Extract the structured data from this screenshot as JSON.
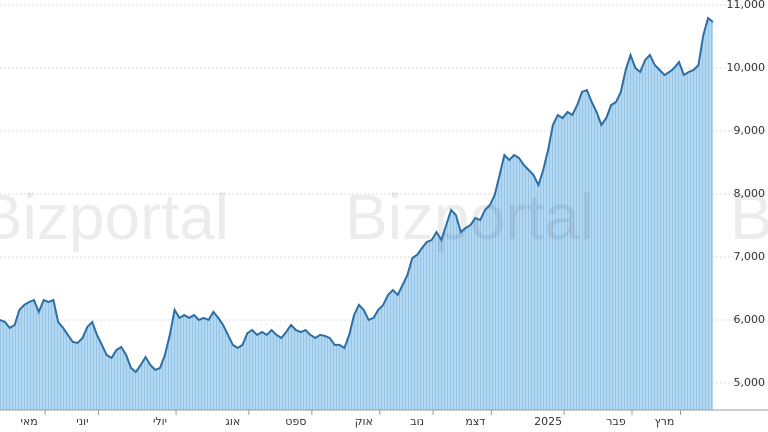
{
  "chart_data": {
    "type": "area",
    "watermark": "Bizportal",
    "series": [
      {
        "color": "#2e6fa3",
        "fill": "#a9d1ee",
        "values": [
          6000,
          5968,
          5873,
          5920,
          6159,
          6238,
          6285,
          6317,
          6127,
          6317,
          6285,
          6317,
          5968,
          5873,
          5762,
          5650,
          5635,
          5714,
          5889,
          5968,
          5762,
          5603,
          5444,
          5397,
          5523,
          5571,
          5444,
          5238,
          5174,
          5285,
          5412,
          5285,
          5206,
          5238,
          5444,
          5762,
          6159,
          6032,
          6079,
          6032,
          6079,
          6000,
          6032,
          6000,
          6127,
          6032,
          5920,
          5762,
          5603,
          5555,
          5603,
          5793,
          5841,
          5762,
          5809,
          5762,
          5841,
          5762,
          5714,
          5809,
          5920,
          5841,
          5809,
          5841,
          5762,
          5714,
          5762,
          5746,
          5714,
          5603,
          5603,
          5555,
          5762,
          6079,
          6238,
          6159,
          6000,
          6032,
          6159,
          6238,
          6397,
          6476,
          6397,
          6555,
          6714,
          6984,
          7032,
          7143,
          7238,
          7270,
          7397,
          7270,
          7508,
          7746,
          7667,
          7397,
          7460,
          7508,
          7619,
          7587,
          7746,
          7825,
          7984,
          8301,
          8619,
          8539,
          8619,
          8571,
          8460,
          8381,
          8301,
          8142,
          8381,
          8698,
          9095,
          9254,
          9206,
          9301,
          9254,
          9412,
          9619,
          9650,
          9460,
          9301,
          9095,
          9206,
          9412,
          9460,
          9619,
          9968,
          10206,
          10000,
          9936,
          10127,
          10206,
          10047,
          9968,
          9889,
          9936,
          10000,
          10095,
          9889,
          9936,
          9968,
          10047,
          10523,
          10793,
          10730
        ]
      }
    ],
    "xlim": [
      0,
      147
    ],
    "xticks": [
      {
        "value": 6,
        "label": "מאי"
      },
      {
        "value": 17,
        "label": "יוני"
      },
      {
        "value": 33,
        "label": "יולי"
      },
      {
        "value": 48,
        "label": "אוג"
      },
      {
        "value": 61,
        "label": "ספט"
      },
      {
        "value": 75,
        "label": "אוק"
      },
      {
        "value": 86,
        "label": "נוב"
      },
      {
        "value": 98,
        "label": "דצמ"
      },
      {
        "value": 113,
        "label": "2025"
      },
      {
        "value": 127,
        "label": "פבר"
      },
      {
        "value": 137,
        "label": "מרץ"
      }
    ],
    "ylim": [
      4570,
      11080
    ],
    "yticks": [
      {
        "value": 5000,
        "label": "5,000"
      },
      {
        "value": 6000,
        "label": "6,000"
      },
      {
        "value": 7000,
        "label": "7,000"
      },
      {
        "value": 8000,
        "label": "8,000"
      },
      {
        "value": 9000,
        "label": "9,000"
      },
      {
        "value": 10000,
        "label": "10,000"
      },
      {
        "value": 11000,
        "label": "11,000"
      }
    ],
    "grid": true
  }
}
